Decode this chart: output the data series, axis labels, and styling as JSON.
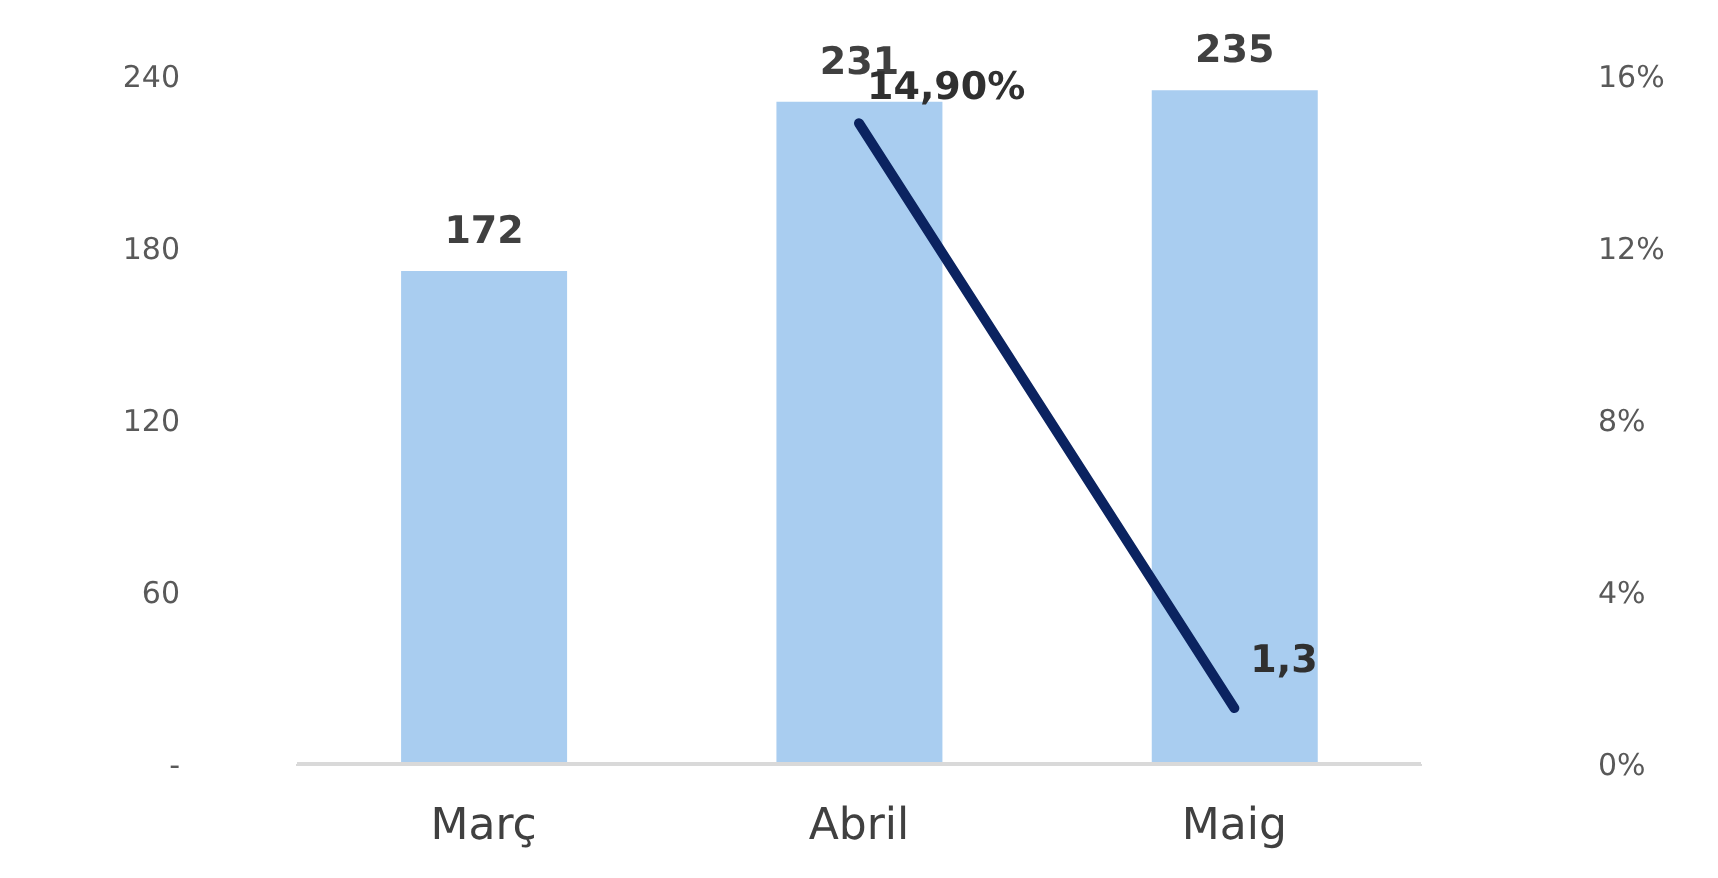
{
  "chart_data": {
    "type": "bar",
    "categories": [
      "Març",
      "Abril",
      "Maig"
    ],
    "series": [
      {
        "color": "#a9cdf0",
        "values": [
          172,
          231,
          235
        ],
        "value_labels": [
          "172",
          "231",
          "235"
        ]
      },
      {
        "type": "line",
        "axis": "y2",
        "color": "#0b2360",
        "values": [
          null,
          14.9,
          1.3
        ],
        "value_labels": [
          null,
          "14,90%",
          "1,3"
        ]
      }
    ],
    "ylim": [
      0,
      240
    ],
    "yticks": [
      {
        "value": 0,
        "label": "-"
      },
      60,
      120,
      180,
      240
    ],
    "y2lim": [
      0,
      16
    ],
    "y2ticks": [
      {
        "value": 0,
        "label": "0%"
      },
      {
        "value": 4,
        "label": "4%"
      },
      {
        "value": 8,
        "label": "8%"
      },
      {
        "value": 12,
        "label": "12%"
      },
      {
        "value": 16,
        "label": "16%"
      }
    ],
    "grid": false,
    "legend": false,
    "marker": "none",
    "line_style": "solid"
  }
}
